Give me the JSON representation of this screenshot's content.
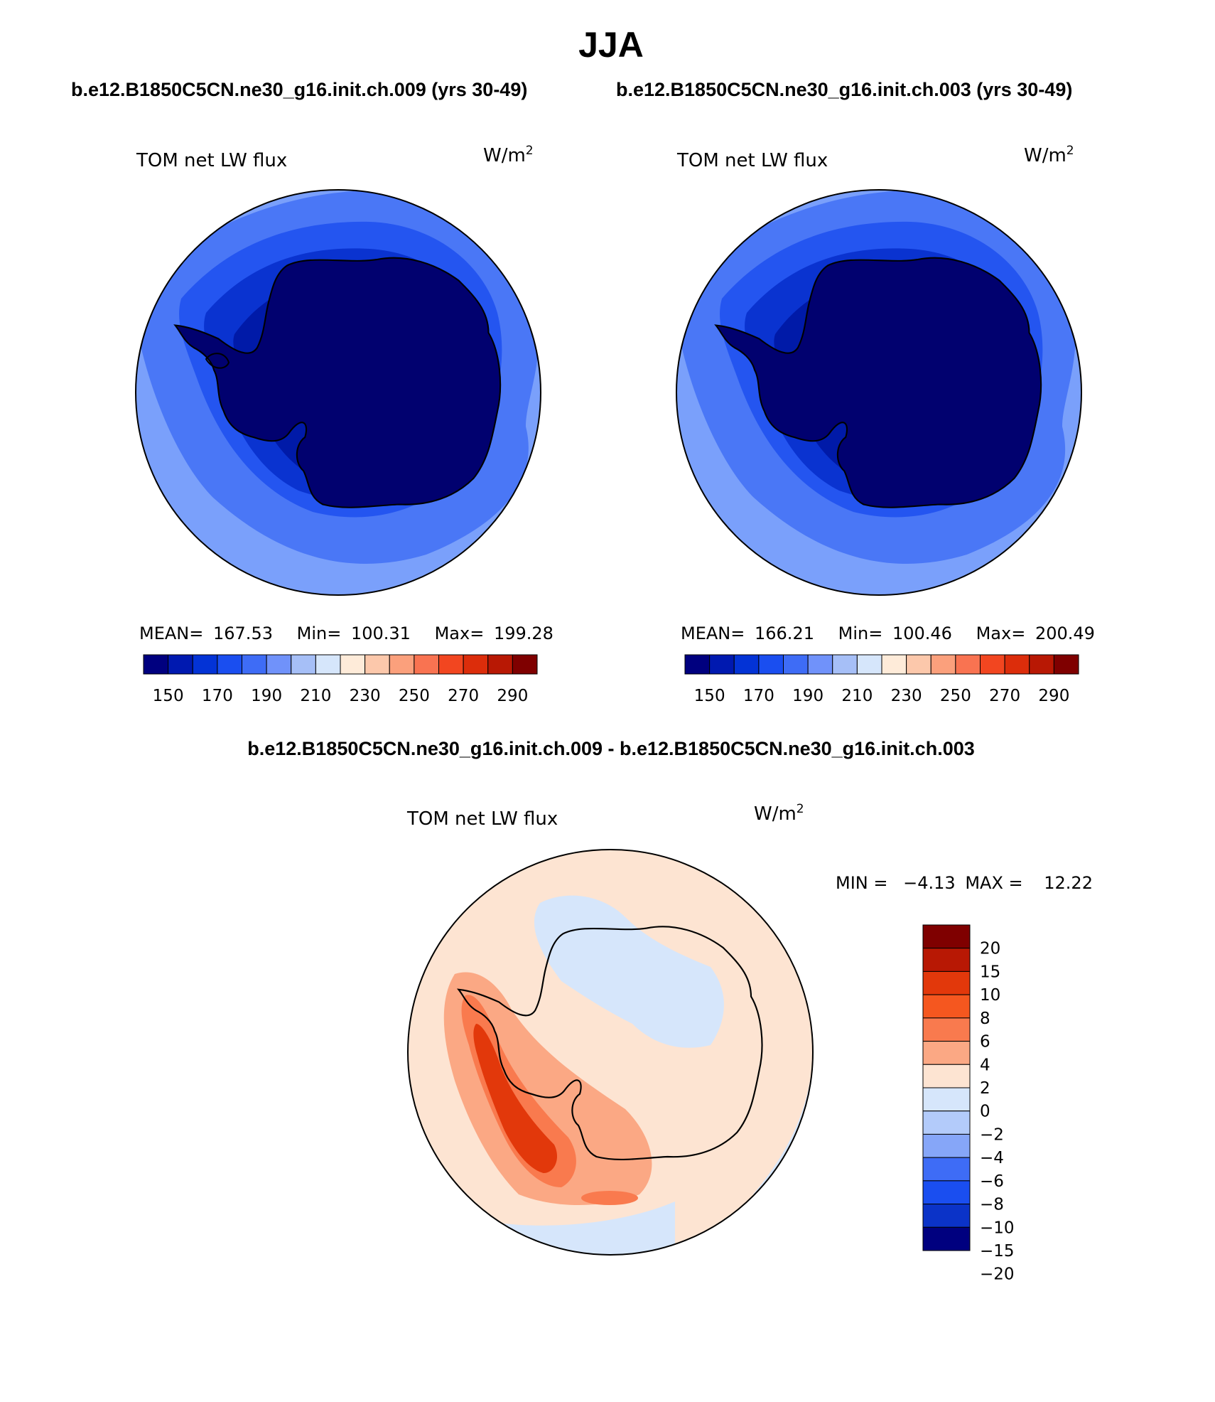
{
  "figure": {
    "title": "JJA",
    "panel_titles": {
      "left": "b.e12.B1850C5CN.ne30_g16.init.ch.009 (yrs 30-49)",
      "right": "b.e12.B1850C5CN.ne30_g16.init.ch.003 (yrs 30-49)",
      "diff": "b.e12.B1850C5CN.ne30_g16.init.ch.009 - b.e12.B1850C5CN.ne30_g16.init.ch.003"
    }
  },
  "panels": {
    "left": {
      "variable": "TOM net LW flux",
      "units_base": "W/m",
      "units_exp": "2",
      "stats": {
        "mean_label": "MEAN=",
        "mean": "167.53",
        "min_label": "Min=",
        "min": "100.31",
        "max_label": "Max=",
        "max": "199.28"
      }
    },
    "right": {
      "variable": "TOM net LW flux",
      "units_base": "W/m",
      "units_exp": "2",
      "stats": {
        "mean_label": "MEAN=",
        "mean": "166.21",
        "min_label": "Min=",
        "min": "100.46",
        "max_label": "Max=",
        "max": "200.49"
      }
    },
    "diff": {
      "variable": "TOM net LW flux",
      "units_base": "W/m",
      "units_exp": "2",
      "minmax": {
        "min_label": "MIN =",
        "min": "−4.13",
        "max_label": "MAX =",
        "max": "12.22"
      }
    }
  },
  "colorbars": {
    "main": {
      "colors": [
        "#00007f",
        "#0019b0",
        "#0333d6",
        "#1a4ef0",
        "#3e6cf6",
        "#7092fa",
        "#a6bff7",
        "#d6e6fb",
        "#feebd9",
        "#fcc8ab",
        "#fba07c",
        "#f97351",
        "#f24620",
        "#dc2d0b",
        "#b81804",
        "#7f0000"
      ],
      "tick_labels": [
        "150",
        "170",
        "190",
        "210",
        "230",
        "250",
        "270",
        "290"
      ]
    },
    "diff": {
      "colors_top_to_bottom": [
        "#7f0000",
        "#b81804",
        "#e2380b",
        "#f5571f",
        "#f97a4e",
        "#fba884",
        "#fde4d2",
        "#d6e6fb",
        "#b3cbfa",
        "#86a6f8",
        "#3e6cf6",
        "#1a4ef0",
        "#0b33c8",
        "#00007f"
      ],
      "tick_labels_top_to_bottom": [
        "20",
        "15",
        "10",
        "8",
        "6",
        "4",
        "2",
        "0",
        "−2",
        "−4",
        "−6",
        "−8",
        "−10",
        "−15",
        "−20"
      ]
    }
  }
}
